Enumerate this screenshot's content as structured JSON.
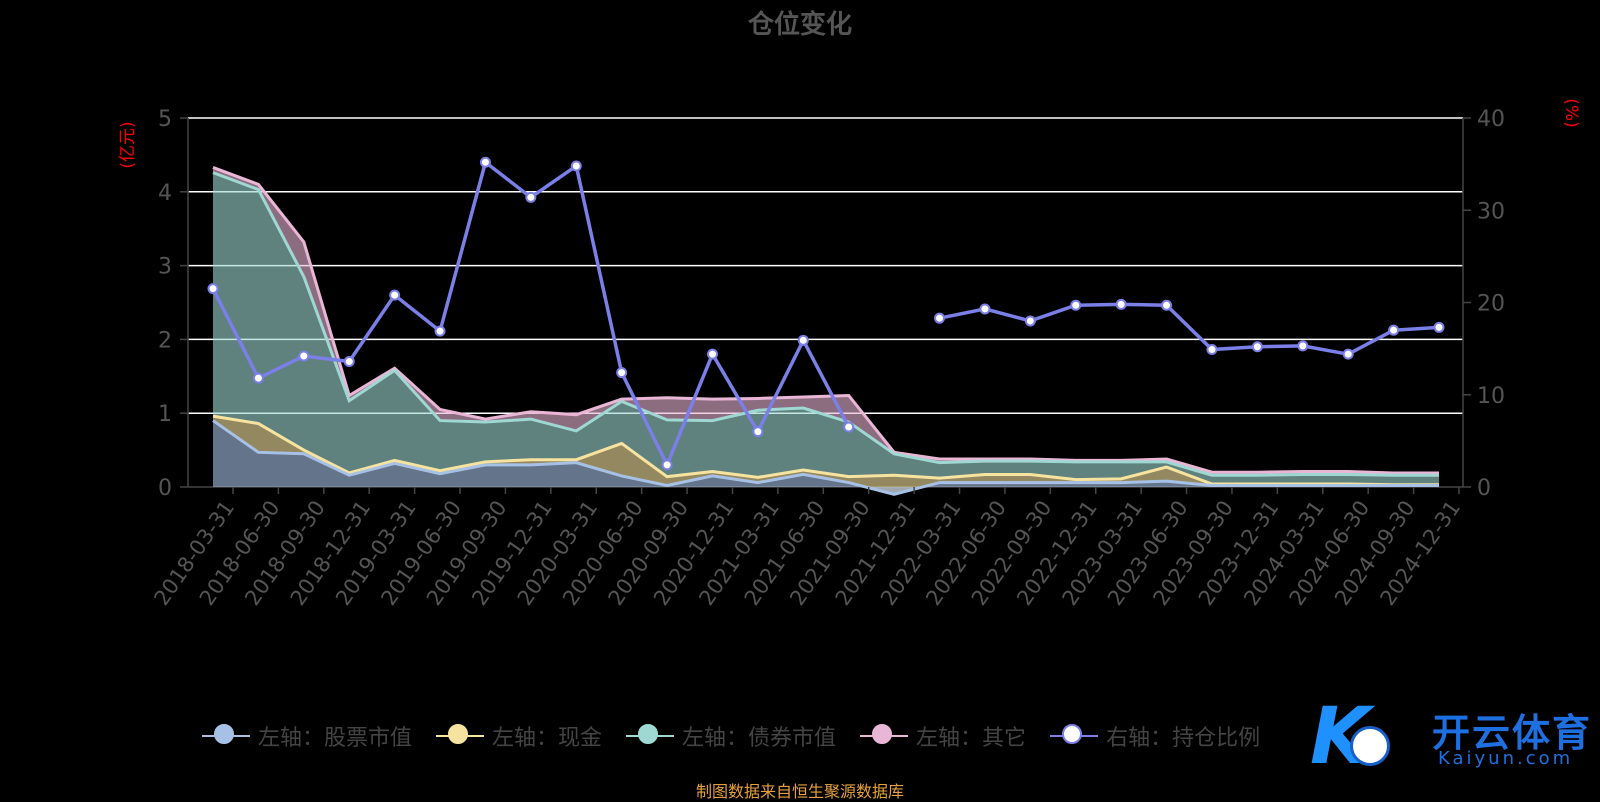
{
  "title": "仓位变化",
  "source_note": "制图数据来自恒生聚源数据库",
  "brand": {
    "cn": "开云体育",
    "en": "Kaiyun.com",
    "mark": "K"
  },
  "colors": {
    "stock": "#a7c1e6",
    "cash": "#f7e3a0",
    "bond": "#9fd8d2",
    "other": "#e9b6d6",
    "ratio": "#7b7fe8",
    "axis_unit": "#ff0000",
    "grid": "#ffffff",
    "axis_text": "#555555"
  },
  "legend": [
    {
      "label": "左轴：股票市值",
      "color": "#a7c1e6",
      "fill": "#a7c1e6"
    },
    {
      "label": "左轴：现金",
      "color": "#f7e3a0",
      "fill": "#f7e3a0"
    },
    {
      "label": "左轴：债券市值",
      "color": "#9fd8d2",
      "fill": "#9fd8d2"
    },
    {
      "label": "左轴：其它",
      "color": "#e9b6d6",
      "fill": "#e9b6d6"
    },
    {
      "label": "右轴：持仓比例",
      "color": "#7b7fe8",
      "fill": "#ffffff"
    }
  ],
  "chart_data": {
    "type": "area",
    "title": "仓位变化",
    "x": [
      "2018-03-31",
      "2018-06-30",
      "2018-09-30",
      "2018-12-31",
      "2019-03-31",
      "2019-06-30",
      "2019-09-30",
      "2019-12-31",
      "2020-03-31",
      "2020-06-30",
      "2020-09-30",
      "2020-12-31",
      "2021-03-31",
      "2021-06-30",
      "2021-09-30",
      "2021-12-31",
      "2022-03-31",
      "2022-06-30",
      "2022-09-30",
      "2022-12-31",
      "2023-03-31",
      "2023-06-30",
      "2023-09-30",
      "2023-12-31",
      "2024-03-31",
      "2024-06-30",
      "2024-09-30",
      "2024-12-31"
    ],
    "y_left": {
      "unit": "(亿元)",
      "ylim": [
        0,
        5
      ],
      "ticks": [
        "0",
        "1",
        "2",
        "3",
        "4",
        "5"
      ]
    },
    "y_right": {
      "unit": "(%)",
      "ylim": [
        0,
        40
      ],
      "ticks": [
        "0",
        "10",
        "20",
        "30",
        "40"
      ]
    },
    "grid": true,
    "legend_position": "bottom",
    "stacked": true,
    "series": [
      {
        "name": "左轴：股票市值",
        "axis": "left",
        "values": [
          0.9,
          0.47,
          0.45,
          0.16,
          0.32,
          0.18,
          0.3,
          0.3,
          0.33,
          0.15,
          0.02,
          0.15,
          0.06,
          0.17,
          0.06,
          -0.1,
          0.06,
          0.06,
          0.06,
          0.06,
          0.06,
          0.08,
          0.02,
          0.02,
          0.02,
          0.02,
          0.02,
          0.02
        ]
      },
      {
        "name": "左轴：现金",
        "axis": "left",
        "values": [
          0.06,
          0.39,
          0.05,
          0.03,
          0.04,
          0.04,
          0.04,
          0.07,
          0.04,
          0.44,
          0.12,
          0.06,
          0.07,
          0.06,
          0.08,
          0.26,
          0.06,
          0.11,
          0.11,
          0.04,
          0.05,
          0.19,
          0.02,
          0.02,
          0.02,
          0.02,
          0.01,
          0.01
        ]
      },
      {
        "name": "左轴：债券市值",
        "axis": "left",
        "values": [
          3.3,
          3.17,
          2.35,
          0.98,
          1.22,
          0.68,
          0.54,
          0.55,
          0.39,
          0.57,
          0.77,
          0.69,
          0.91,
          0.84,
          0.74,
          0.29,
          0.21,
          0.18,
          0.18,
          0.24,
          0.23,
          0.07,
          0.12,
          0.12,
          0.13,
          0.13,
          0.13,
          0.13
        ]
      },
      {
        "name": "左轴：其它",
        "axis": "left",
        "values": [
          0.07,
          0.07,
          0.47,
          0.07,
          0.03,
          0.15,
          0.04,
          0.1,
          0.22,
          0.03,
          0.3,
          0.29,
          0.16,
          0.15,
          0.36,
          0.02,
          0.05,
          0.03,
          0.03,
          0.02,
          0.02,
          0.04,
          0.04,
          0.04,
          0.04,
          0.04,
          0.03,
          0.03
        ]
      },
      {
        "name": "右轴：持仓比例",
        "axis": "right",
        "values": [
          21.5,
          11.8,
          14.2,
          13.6,
          20.8,
          16.9,
          35.2,
          31.4,
          34.8,
          12.4,
          2.4,
          14.4,
          6.0,
          15.9,
          6.5,
          null,
          18.3,
          19.3,
          18.0,
          19.7,
          19.8,
          19.7,
          14.9,
          15.2,
          15.3,
          14.4,
          17.0,
          17.3
        ]
      }
    ]
  }
}
